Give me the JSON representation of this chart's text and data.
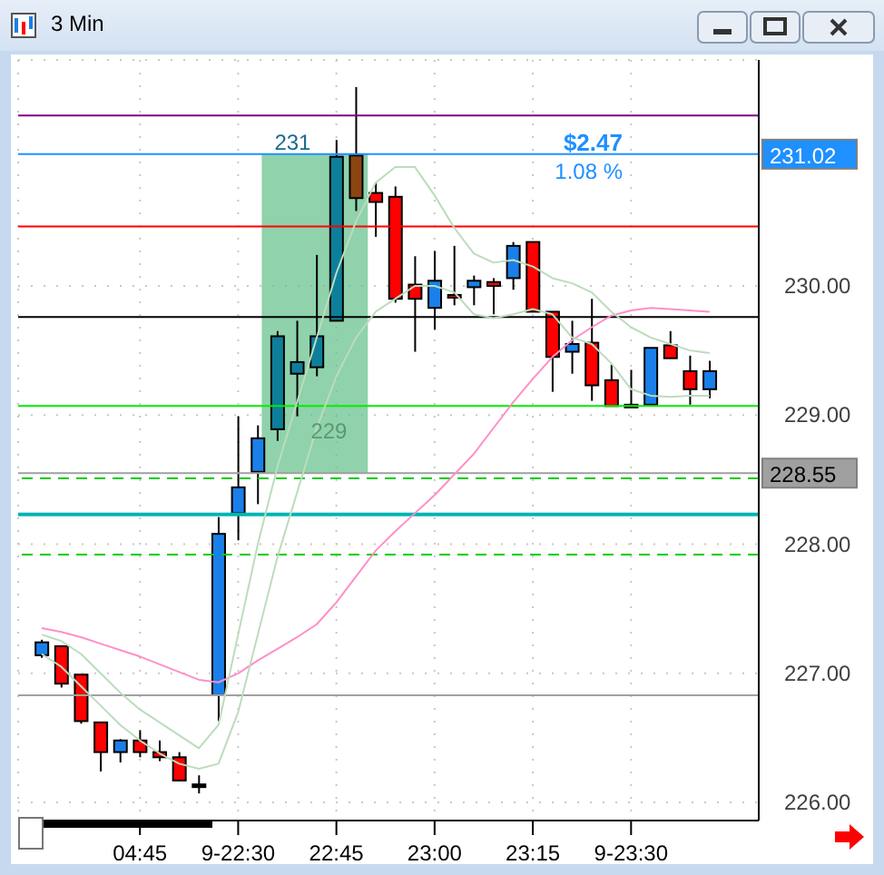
{
  "chart_data": {
    "type": "candlestick",
    "title": "3 Min",
    "categories": [
      null,
      null,
      null,
      null,
      null,
      "04:45",
      null,
      null,
      null,
      null,
      "9-22:30",
      null,
      null,
      null,
      null,
      "22:45",
      null,
      null,
      null,
      null,
      "23:00",
      null,
      null,
      null,
      null,
      "23:15",
      null,
      null,
      null,
      null,
      "9-23:30",
      null,
      null,
      null,
      null
    ],
    "ohlc": [
      [
        227.14,
        227.26,
        227.12,
        227.24
      ],
      [
        227.21,
        227.21,
        226.89,
        226.92
      ],
      [
        226.99,
        226.99,
        226.61,
        226.63
      ],
      [
        226.62,
        226.62,
        226.24,
        226.39
      ],
      [
        226.39,
        226.49,
        226.31,
        226.48
      ],
      [
        226.48,
        226.56,
        226.35,
        226.39
      ],
      [
        226.39,
        226.48,
        226.32,
        226.35
      ],
      [
        226.35,
        226.39,
        226.17,
        226.17
      ],
      [
        226.14,
        226.21,
        226.07,
        226.14
      ],
      [
        226.83,
        228.21,
        226.63,
        228.08
      ],
      [
        228.24,
        228.99,
        228.03,
        228.44
      ],
      [
        228.56,
        228.92,
        228.31,
        228.82
      ],
      [
        228.89,
        229.65,
        228.8,
        229.61
      ],
      [
        229.32,
        229.73,
        228.99,
        229.41
      ],
      [
        229.37,
        230.24,
        229.3,
        229.61
      ],
      [
        229.73,
        231.13,
        229.73,
        231
      ],
      [
        231.01,
        231.54,
        230.58,
        230.68
      ],
      [
        230.72,
        230.8,
        230.38,
        230.65
      ],
      [
        230.69,
        230.77,
        229.87,
        229.9
      ],
      [
        230.01,
        230.23,
        229.49,
        229.9
      ],
      [
        229.83,
        230.27,
        229.66,
        230.04
      ],
      [
        229.93,
        230.31,
        229.85,
        229.92
      ],
      [
        229.99,
        230.08,
        229.85,
        230.04
      ],
      [
        230.03,
        230.06,
        229.78,
        230
      ],
      [
        230.06,
        230.34,
        229.97,
        230.31
      ],
      [
        230.34,
        230.34,
        229.8,
        229.8
      ],
      [
        229.8,
        229.8,
        229.18,
        229.45
      ],
      [
        229.49,
        229.73,
        229.32,
        229.55
      ],
      [
        229.56,
        229.9,
        229.11,
        229.23
      ],
      [
        229.27,
        229.39,
        229.07,
        229.07
      ],
      [
        229.08,
        229.35,
        229.06,
        229.06
      ],
      [
        229.08,
        229.52,
        229.08,
        229.52
      ],
      [
        229.54,
        229.65,
        229.44,
        229.44
      ],
      [
        229.34,
        229.46,
        229.08,
        229.2
      ],
      [
        229.2,
        229.42,
        229.13,
        229.34
      ]
    ],
    "colors": [
      "#1a7fe8",
      "#ff0000",
      "#ff0000",
      "#ff0000",
      "#1a7fe8",
      "#ff0000",
      "#ff0000",
      "#ff0000",
      "#000000",
      "#1a7fe8",
      "#1a7fe8",
      "#1a7fe8",
      "#0e7f9a",
      "#0e7f9a",
      "#0e7f9a",
      "#0e7f9a",
      "#8b4513",
      "#ff0000",
      "#ff0000",
      "#ff0000",
      "#1a7fe8",
      "#ff0000",
      "#1a7fe8",
      "#ff0000",
      "#1a7fe8",
      "#ff0000",
      "#ff0000",
      "#1a7fe8",
      "#ff0000",
      "#ff0000",
      "#ff0000",
      "#1a7fe8",
      "#ff0000",
      "#ff0000",
      "#1a7fe8"
    ],
    "series": [
      {
        "type": "line",
        "color": "#ff8fc8",
        "values": [
          227.35,
          227.32,
          227.28,
          227.23,
          227.18,
          227.13,
          227.07,
          227.01,
          226.95,
          226.93,
          227.0,
          227.1,
          227.19,
          227.28,
          227.38,
          227.55,
          227.75,
          227.95,
          228.1,
          228.24,
          228.38,
          228.54,
          228.7,
          228.9,
          229.1,
          229.28,
          229.45,
          229.58,
          229.68,
          229.77,
          229.81,
          229.83,
          229.82,
          229.81,
          229.8
        ]
      },
      {
        "type": "line",
        "color": "#bcdcbc",
        "values": [
          227.3,
          227.25,
          227.15,
          227.0,
          226.85,
          226.72,
          226.62,
          226.52,
          226.42,
          226.6,
          227.3,
          228.0,
          228.6,
          229.1,
          229.6,
          230.1,
          230.5,
          230.8,
          230.92,
          230.92,
          230.7,
          230.45,
          230.25,
          230.18,
          230.2,
          230.15,
          230.06,
          230.02,
          229.95,
          229.8,
          229.68,
          229.6,
          229.55,
          229.5,
          229.48
        ]
      },
      {
        "type": "line",
        "color": "#bcdcbc",
        "values": [
          227.15,
          227.05,
          226.9,
          226.75,
          226.6,
          226.48,
          226.38,
          226.3,
          226.26,
          226.3,
          226.7,
          227.3,
          227.9,
          228.4,
          228.9,
          229.3,
          229.6,
          229.8,
          229.9,
          230.0,
          230.0,
          229.95,
          229.78,
          229.75,
          229.78,
          229.82,
          229.78,
          229.6,
          229.55,
          229.4,
          229.2,
          229.15,
          229.14,
          229.15,
          229.15
        ]
      }
    ],
    "ylim": [
      225.86,
      231.75
    ],
    "yticks": [
      {
        "value": 226,
        "label": "226.00"
      },
      {
        "value": 227,
        "label": "227.00"
      },
      {
        "value": 228,
        "label": "228.00"
      },
      {
        "value": 229,
        "label": "229.00"
      },
      {
        "value": 230,
        "label": "230.00"
      }
    ],
    "ref_lines": [
      {
        "axis": "y",
        "value": 231.32,
        "label": null,
        "color": "#800080"
      },
      {
        "axis": "y",
        "value": 231.02,
        "label": "231.02",
        "color": "#1e90ff"
      },
      {
        "axis": "y",
        "value": 230.46,
        "label": null,
        "color": "#ff0000"
      },
      {
        "axis": "y",
        "value": 229.76,
        "label": null,
        "color": "#000000"
      },
      {
        "axis": "y",
        "value": 229.07,
        "label": null,
        "color": "#00ee00"
      },
      {
        "axis": "y",
        "value": 228.55,
        "label": "228.55",
        "color": "#a0a0a0"
      },
      {
        "axis": "y",
        "value": 228.51,
        "label": null,
        "color": "#00cc00",
        "line_style": "dashed"
      },
      {
        "axis": "y",
        "value": 228.23,
        "label": null,
        "color": "#00b4b4"
      },
      {
        "axis": "y",
        "value": 227.92,
        "label": null,
        "color": "#00cc00",
        "line_style": "dashed"
      },
      {
        "axis": "y",
        "value": 226.83,
        "label": null,
        "color": "#a0a0a0"
      }
    ],
    "bands": [
      {
        "axis": "y",
        "from": 228.55,
        "to": 231.02,
        "color": "#5fbf87"
      }
    ],
    "annotations": [
      "$2.47",
      "1.08 %",
      "231",
      "229"
    ],
    "grid": true,
    "legend": false
  }
}
